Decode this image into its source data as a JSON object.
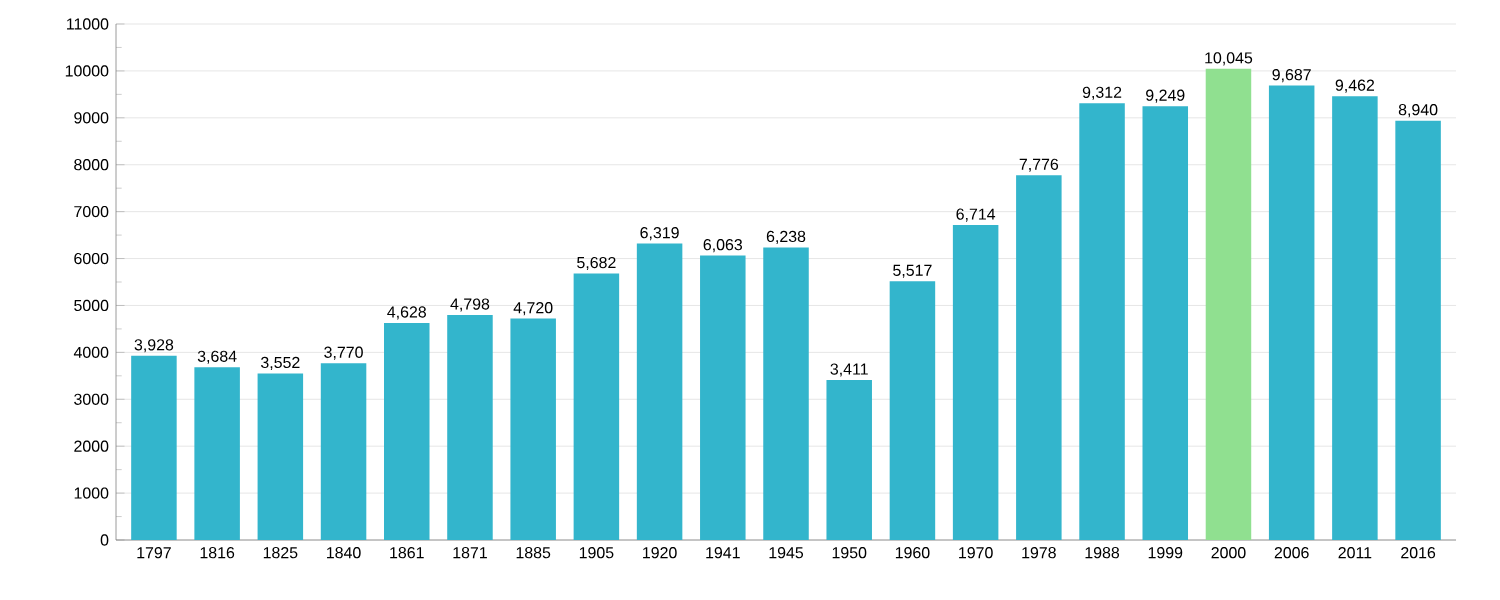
{
  "chart_data": {
    "type": "bar",
    "categories": [
      "1797",
      "1816",
      "1825",
      "1840",
      "1861",
      "1871",
      "1885",
      "1905",
      "1920",
      "1941",
      "1945",
      "1950",
      "1960",
      "1970",
      "1978",
      "1988",
      "1999",
      "2000",
      "2006",
      "2011",
      "2016"
    ],
    "values": [
      3928,
      3684,
      3552,
      3770,
      4628,
      4798,
      4720,
      5682,
      6319,
      6063,
      6238,
      3411,
      5517,
      6714,
      7776,
      9312,
      9249,
      10045,
      9687,
      9462,
      8940
    ],
    "value_labels": [
      "3,928",
      "3,684",
      "3,552",
      "3,770",
      "4,628",
      "4,798",
      "4,720",
      "5,682",
      "6,319",
      "6,063",
      "6,238",
      "3,411",
      "5,517",
      "6,714",
      "7,776",
      "9,312",
      "9,249",
      "10,045",
      "9,687",
      "9,462",
      "8,940"
    ],
    "colors": [
      "#33b5cc",
      "#33b5cc",
      "#33b5cc",
      "#33b5cc",
      "#33b5cc",
      "#33b5cc",
      "#33b5cc",
      "#33b5cc",
      "#33b5cc",
      "#33b5cc",
      "#33b5cc",
      "#33b5cc",
      "#33b5cc",
      "#33b5cc",
      "#33b5cc",
      "#33b5cc",
      "#33b5cc",
      "#90e090",
      "#33b5cc",
      "#33b5cc",
      "#33b5cc"
    ],
    "ylim": [
      0,
      11000
    ],
    "yticks": [
      0,
      1000,
      2000,
      3000,
      4000,
      5000,
      6000,
      7000,
      8000,
      9000,
      10000,
      11000
    ],
    "grid": "y"
  }
}
